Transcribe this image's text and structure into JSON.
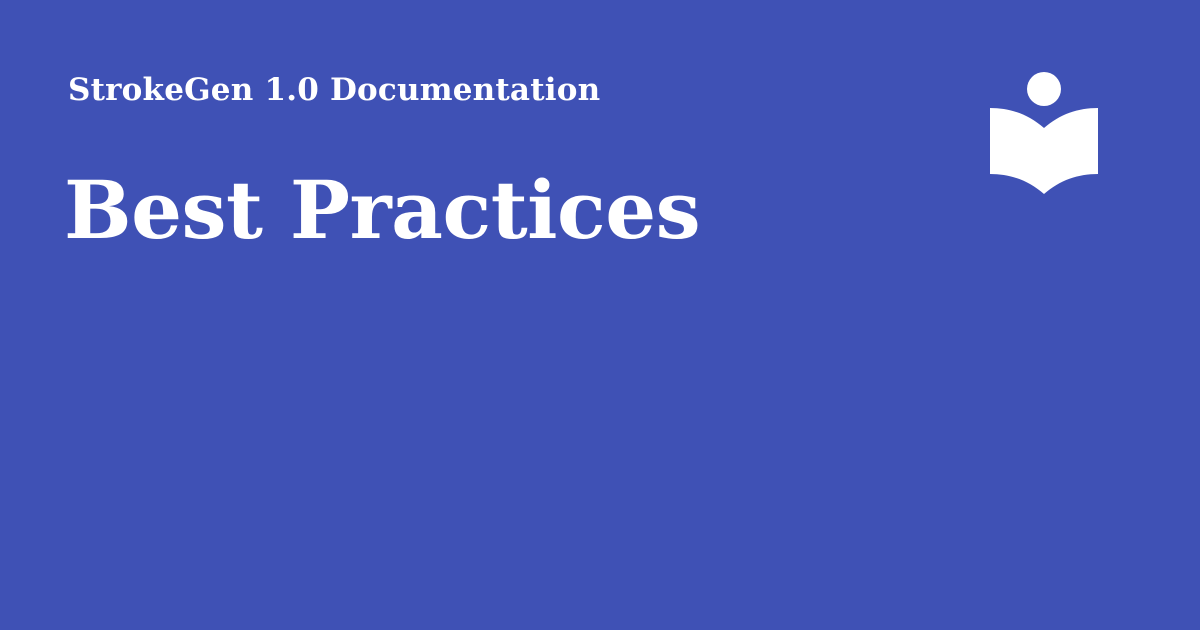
{
  "site": {
    "name": "StrokeGen 1.0 Documentation"
  },
  "page": {
    "title": "Best Practices"
  },
  "logo": {
    "icon": "reader-book-icon",
    "color": "#ffffff"
  },
  "colors": {
    "background": "#3f51b5",
    "text": "#ffffff"
  }
}
